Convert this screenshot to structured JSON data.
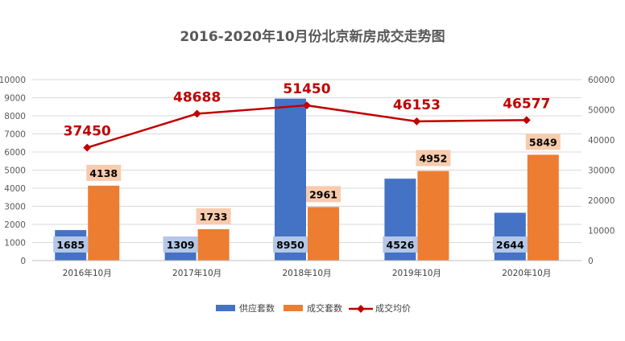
{
  "chart_data": {
    "type": "bar+line",
    "title": "2016-2020年10月份北京新房成交走势图",
    "categories": [
      "2016年10月",
      "2017年10月",
      "2018年10月",
      "2019年10月",
      "2020年10月"
    ],
    "series": [
      {
        "name": "供应套数",
        "type": "bar",
        "axis": "left",
        "color": "#4472C4",
        "values": [
          1685,
          1309,
          8950,
          4526,
          2644
        ]
      },
      {
        "name": "成交套数",
        "type": "bar",
        "axis": "left",
        "color": "#ED7D31",
        "values": [
          4138,
          1733,
          2961,
          4952,
          5849
        ]
      },
      {
        "name": "成交均价",
        "type": "line",
        "axis": "right",
        "color": "#C00000",
        "values": [
          37450,
          48688,
          51450,
          46153,
          46577
        ]
      }
    ],
    "y_left": {
      "min": 0,
      "max": 10000,
      "step": 1000
    },
    "y_right": {
      "min": 0,
      "max": 60000,
      "step": 10000
    },
    "grid": true,
    "legend_position": "bottom",
    "label_colors": {
      "supply_box": "#B4C7E7",
      "deal_box": "#F8CBAD",
      "price_text": "#C00000",
      "axis_text": "#595959",
      "grid": "#D9D9D9"
    }
  }
}
